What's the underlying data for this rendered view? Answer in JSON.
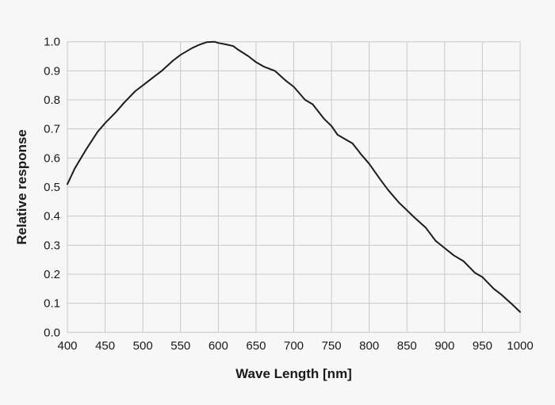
{
  "chart_data": {
    "type": "line",
    "title": "",
    "xlabel": "Wave Length [nm]",
    "ylabel": "Relative response",
    "xlim": [
      400,
      1000
    ],
    "ylim": [
      0,
      1.0
    ],
    "grid": true,
    "legend": "none",
    "x_tick_labels": [
      "400",
      "450",
      "500",
      "550",
      "600",
      "650",
      "700",
      "750",
      "800",
      "850",
      "900",
      "950",
      "1000"
    ],
    "y_tick_labels": [
      "1.0",
      "0.9",
      "0.8",
      "0.7",
      "0.6",
      "0.5",
      "0.4",
      "0.3",
      "0.2",
      "0.1",
      "0.0"
    ],
    "series": [
      {
        "name": "relative-response",
        "x": [
          400,
          410,
          425,
          440,
          450,
          465,
          475,
          490,
          500,
          515,
          525,
          540,
          550,
          565,
          575,
          585,
          595,
          600,
          610,
          620,
          625,
          640,
          650,
          660,
          675,
          690,
          700,
          715,
          725,
          740,
          750,
          758,
          768,
          778,
          790,
          800,
          815,
          825,
          840,
          850,
          860,
          875,
          888,
          900,
          912,
          925,
          940,
          950,
          965,
          975,
          990,
          1000
        ],
        "y": [
          0.51,
          0.565,
          0.63,
          0.69,
          0.72,
          0.76,
          0.79,
          0.83,
          0.85,
          0.88,
          0.9,
          0.935,
          0.955,
          0.978,
          0.99,
          0.999,
          1.0,
          0.996,
          0.991,
          0.985,
          0.975,
          0.95,
          0.93,
          0.915,
          0.9,
          0.865,
          0.845,
          0.8,
          0.785,
          0.735,
          0.71,
          0.68,
          0.665,
          0.65,
          0.61,
          0.58,
          0.525,
          0.49,
          0.445,
          0.42,
          0.395,
          0.36,
          0.315,
          0.29,
          0.265,
          0.245,
          0.205,
          0.19,
          0.15,
          0.13,
          0.095,
          0.07
        ]
      }
    ],
    "colors": {
      "background": "#f7f7f7",
      "grid": "#c8c8c8",
      "line": "#1c1c1c",
      "text": "#1a1a1a"
    }
  }
}
